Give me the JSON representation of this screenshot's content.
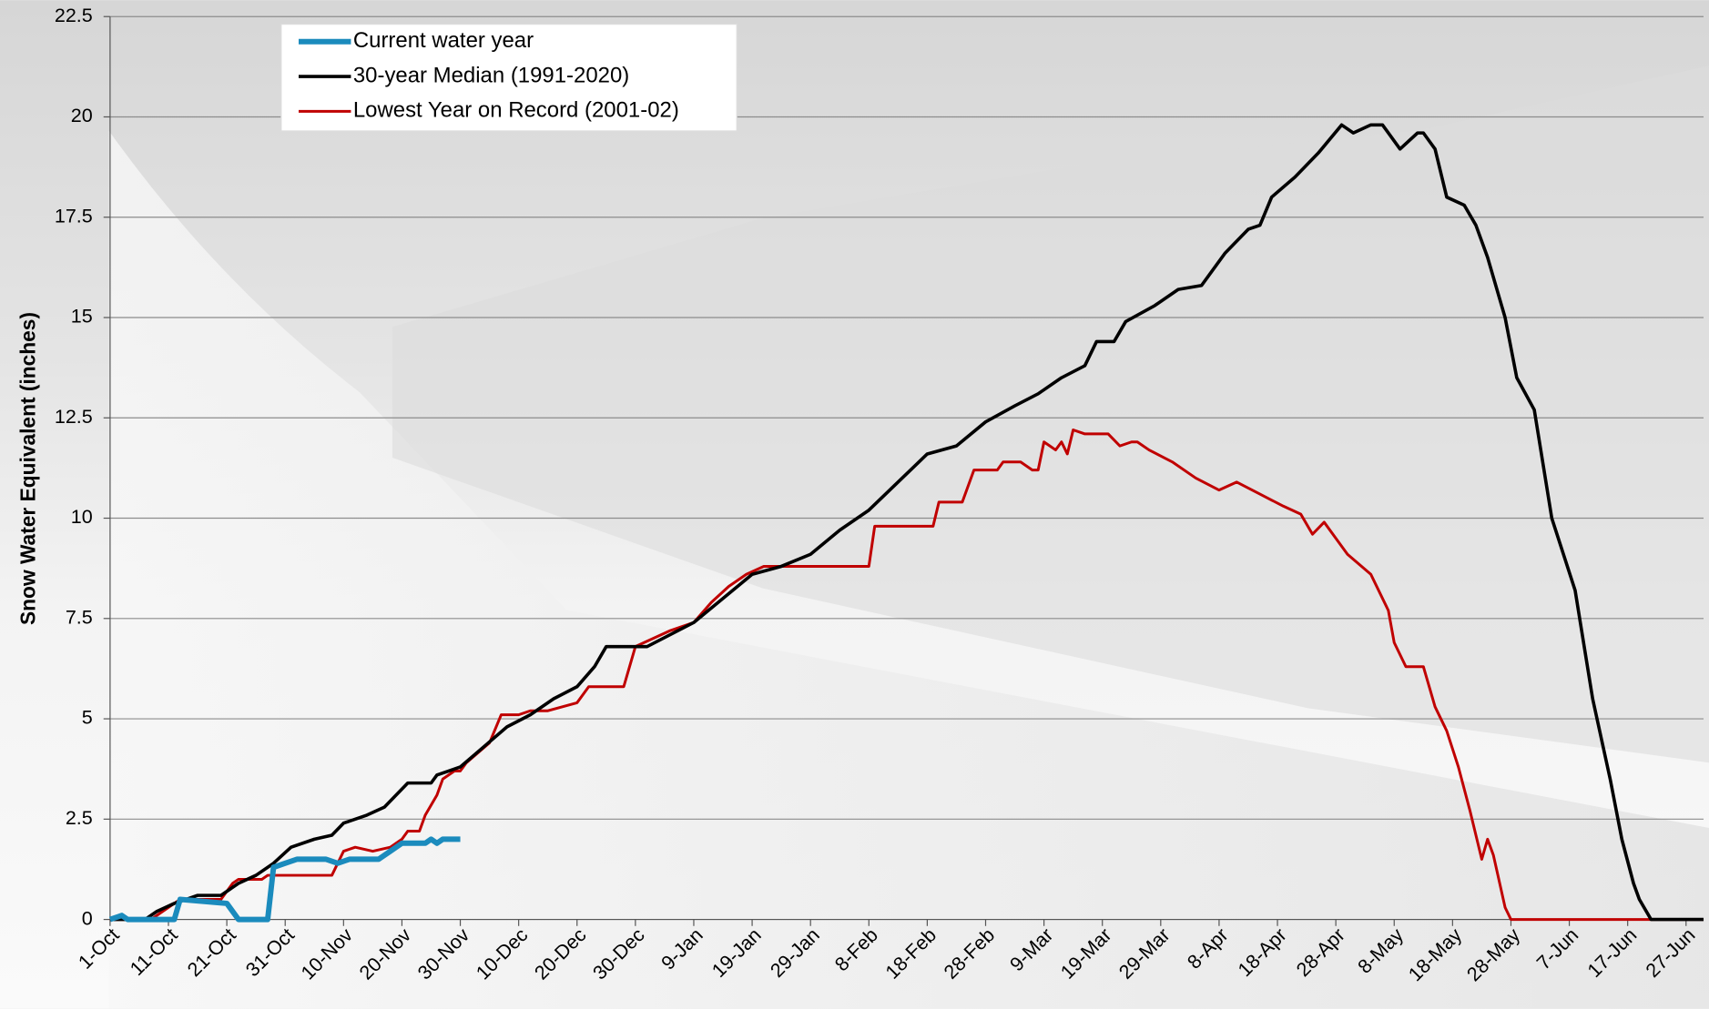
{
  "chart_data": {
    "type": "line",
    "y_label": "Snow Water Equivalent (inches)",
    "ylim": [
      0,
      22.5
    ],
    "yticks": [
      0,
      2.5,
      5,
      7.5,
      10,
      12.5,
      15,
      17.5,
      20,
      22.5
    ],
    "xlim": [
      0,
      273
    ],
    "xticks": [
      {
        "value": 0,
        "label": "1-Oct"
      },
      {
        "value": 10,
        "label": "11-Oct"
      },
      {
        "value": 20,
        "label": "21-Oct"
      },
      {
        "value": 30,
        "label": "31-Oct"
      },
      {
        "value": 40,
        "label": "10-Nov"
      },
      {
        "value": 50,
        "label": "20-Nov"
      },
      {
        "value": 60,
        "label": "30-Nov"
      },
      {
        "value": 70,
        "label": "10-Dec"
      },
      {
        "value": 80,
        "label": "20-Dec"
      },
      {
        "value": 90,
        "label": "30-Dec"
      },
      {
        "value": 100,
        "label": "9-Jan"
      },
      {
        "value": 110,
        "label": "19-Jan"
      },
      {
        "value": 120,
        "label": "29-Jan"
      },
      {
        "value": 130,
        "label": "8-Feb"
      },
      {
        "value": 140,
        "label": "18-Feb"
      },
      {
        "value": 150,
        "label": "28-Feb"
      },
      {
        "value": 160,
        "label": "9-Mar"
      },
      {
        "value": 170,
        "label": "19-Mar"
      },
      {
        "value": 180,
        "label": "29-Mar"
      },
      {
        "value": 190,
        "label": "8-Apr"
      },
      {
        "value": 200,
        "label": "18-Apr"
      },
      {
        "value": 210,
        "label": "28-Apr"
      },
      {
        "value": 220,
        "label": "8-May"
      },
      {
        "value": 230,
        "label": "18-May"
      },
      {
        "value": 240,
        "label": "28-May"
      },
      {
        "value": 250,
        "label": "7-Jun"
      },
      {
        "value": 260,
        "label": "17-Jun"
      },
      {
        "value": 270,
        "label": "27-Jun"
      }
    ],
    "grid": true,
    "legend_position": "top-left",
    "series": [
      {
        "name": "Current water year",
        "color": "#1b8bbd",
        "width": 5,
        "x": [
          0,
          2,
          3,
          11,
          12,
          20,
          22,
          27,
          28,
          30,
          32,
          37,
          39,
          41,
          46,
          48,
          50,
          54,
          55,
          56,
          57,
          60
        ],
        "values": [
          0,
          0.1,
          0,
          0,
          0.5,
          0.4,
          0,
          0,
          1.3,
          1.4,
          1.5,
          1.5,
          1.4,
          1.5,
          1.5,
          1.7,
          1.9,
          1.9,
          2.0,
          1.9,
          2.0,
          2.0
        ]
      },
      {
        "name": "30-year Median (1991-2020)",
        "color": "#000000",
        "width": 3,
        "x": [
          0,
          6,
          8,
          11,
          13,
          15,
          19,
          22,
          25,
          28,
          31,
          35,
          38,
          40,
          44,
          47,
          49,
          51,
          55,
          56,
          58,
          60,
          64,
          68,
          72,
          76,
          80,
          83,
          85,
          92,
          96,
          100,
          105,
          110,
          115,
          120,
          125,
          130,
          135,
          140,
          145,
          150,
          155,
          159,
          163,
          167,
          169,
          172,
          174,
          179,
          183,
          187,
          191,
          195,
          197,
          199,
          203,
          207,
          211,
          213,
          216,
          218,
          221,
          224,
          225,
          227,
          229,
          232,
          234,
          236,
          239,
          241,
          244,
          247,
          251,
          254,
          257,
          259,
          261,
          262,
          264,
          273
        ],
        "values": [
          0,
          0,
          0.2,
          0.4,
          0.5,
          0.6,
          0.6,
          0.9,
          1.1,
          1.4,
          1.8,
          2.0,
          2.1,
          2.4,
          2.6,
          2.8,
          3.1,
          3.4,
          3.4,
          3.6,
          3.7,
          3.8,
          4.3,
          4.8,
          5.1,
          5.5,
          5.8,
          6.3,
          6.8,
          6.8,
          7.1,
          7.4,
          8.0,
          8.6,
          8.8,
          9.1,
          9.7,
          10.2,
          10.9,
          11.6,
          11.8,
          12.4,
          12.8,
          13.1,
          13.5,
          13.8,
          14.4,
          14.4,
          14.9,
          15.3,
          15.7,
          15.8,
          16.6,
          17.2,
          17.3,
          18.0,
          18.5,
          19.1,
          19.8,
          19.6,
          19.8,
          19.8,
          19.2,
          19.6,
          19.6,
          19.2,
          18.0,
          17.8,
          17.3,
          16.5,
          15.0,
          13.5,
          12.7,
          10.0,
          8.2,
          5.5,
          3.5,
          2.0,
          0.9,
          0.5,
          0,
          0
        ]
      },
      {
        "name": "Lowest Year on Record (2001-02)",
        "color": "#c00000",
        "width": 2.5,
        "x": [
          0,
          7,
          10,
          12,
          19,
          21,
          22,
          26,
          27,
          38,
          39,
          40,
          42,
          45,
          48,
          50,
          51,
          53,
          54,
          56,
          57,
          59,
          60,
          61,
          65,
          67,
          70,
          72,
          75,
          80,
          82,
          88,
          90,
          96,
          100,
          103,
          106,
          109,
          112,
          130,
          131,
          141,
          142,
          146,
          148,
          152,
          153,
          156,
          158,
          159,
          160,
          161,
          162,
          163,
          164,
          165,
          167,
          171,
          173,
          175,
          176,
          178,
          182,
          186,
          190,
          193,
          197,
          201,
          204,
          206,
          208,
          210,
          212,
          216,
          219,
          220,
          222,
          225,
          227,
          229,
          231,
          233,
          235,
          236,
          237,
          239,
          240,
          273
        ],
        "values": [
          0,
          0,
          0.3,
          0.5,
          0.5,
          0.9,
          1.0,
          1.0,
          1.1,
          1.1,
          1.4,
          1.7,
          1.8,
          1.7,
          1.8,
          2.0,
          2.2,
          2.2,
          2.6,
          3.1,
          3.5,
          3.7,
          3.7,
          3.9,
          4.4,
          5.1,
          5.1,
          5.2,
          5.2,
          5.4,
          5.8,
          5.8,
          6.8,
          7.2,
          7.4,
          7.9,
          8.3,
          8.6,
          8.8,
          8.8,
          9.8,
          9.8,
          10.4,
          10.4,
          11.2,
          11.2,
          11.4,
          11.4,
          11.2,
          11.2,
          11.9,
          11.8,
          11.7,
          11.9,
          11.6,
          12.2,
          12.1,
          12.1,
          11.8,
          11.9,
          11.9,
          11.7,
          11.4,
          11.0,
          10.7,
          10.9,
          10.6,
          10.3,
          10.1,
          9.6,
          9.9,
          9.5,
          9.1,
          8.6,
          7.7,
          6.9,
          6.3,
          6.3,
          5.3,
          4.7,
          3.8,
          2.7,
          1.5,
          2.0,
          1.6,
          0.3,
          0,
          0
        ]
      }
    ]
  }
}
